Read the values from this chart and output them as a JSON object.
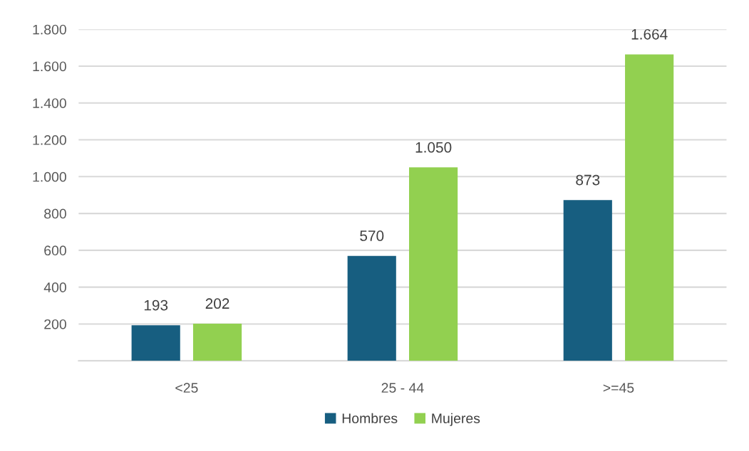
{
  "chart_data": {
    "type": "bar",
    "categories": [
      "<25",
      "25 - 44",
      ">=45"
    ],
    "series": [
      {
        "name": "Hombres",
        "color": "#175e80",
        "values": [
          193,
          570,
          873
        ],
        "value_labels": [
          "193",
          "570",
          "873"
        ]
      },
      {
        "name": "Mujeres",
        "color": "#92d050",
        "values": [
          202,
          1050,
          1664
        ],
        "value_labels": [
          "202",
          "1.050",
          "1.664"
        ]
      }
    ],
    "ylim": [
      0,
      1800
    ],
    "yticks": [
      {
        "value": 0,
        "label": null
      },
      {
        "value": 200,
        "label": "200"
      },
      {
        "value": 400,
        "label": "400"
      },
      {
        "value": 600,
        "label": "600"
      },
      {
        "value": 800,
        "label": "800"
      },
      {
        "value": 1000,
        "label": "1.000"
      },
      {
        "value": 1200,
        "label": "1.200"
      },
      {
        "value": 1400,
        "label": "1.400"
      },
      {
        "value": 1600,
        "label": "1.600"
      },
      {
        "value": 1800,
        "label": "1.800"
      }
    ],
    "grid": "y",
    "legend": "bottom"
  }
}
